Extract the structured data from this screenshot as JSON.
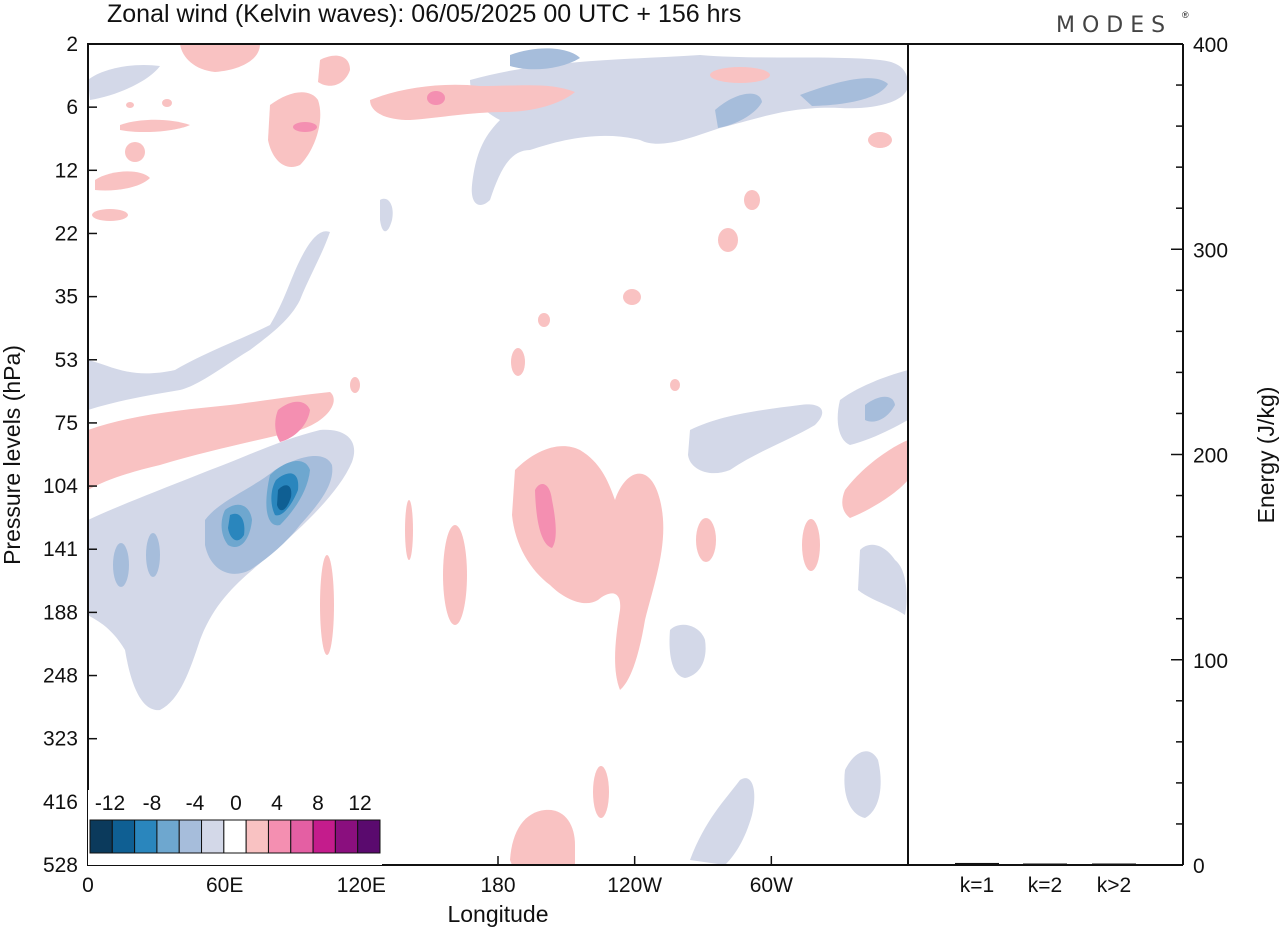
{
  "chart_data": {
    "type": "heatmap",
    "title": "Zonal wind (Kelvin waves):  06/05/2025  00 UTC  + 156 hrs",
    "logo": "MODES",
    "xlabel": "Longitude",
    "ylabel": "Pressure levels (hPa)",
    "x_ticks": [
      "0",
      "60E",
      "120E",
      "180",
      "120W",
      "60W"
    ],
    "x_tick_degrees": [
      0,
      60,
      120,
      180,
      240,
      300
    ],
    "xlim_degrees": [
      0,
      360
    ],
    "y_ticks": [
      "2",
      "6",
      "12",
      "22",
      "35",
      "53",
      "75",
      "104",
      "141",
      "188",
      "248",
      "323",
      "416",
      "528"
    ],
    "y_direction": "downward",
    "colorbar": {
      "labels": [
        "-12",
        "-8",
        "-4",
        "0",
        "4",
        "8",
        "12"
      ],
      "levels": [
        -12,
        -10,
        -8,
        -6,
        -4,
        -2,
        2,
        4,
        6,
        8,
        10,
        12
      ],
      "colors": [
        "#0b3a5c",
        "#0f5f93",
        "#2a86bd",
        "#6ea7cf",
        "#a6bddb",
        "#d3d8e8",
        "#ffffff",
        "#f9c2c2",
        "#f48fb1",
        "#e45fa3",
        "#c41c8c",
        "#8a0f7e",
        "#5a0a6e"
      ]
    },
    "energy_panel": {
      "ylabel": "Energy (J/kg)",
      "ylim": [
        0,
        400
      ],
      "y_ticks": [
        "0",
        "100",
        "200",
        "300",
        "400"
      ],
      "categories": [
        "k=1",
        "k=2",
        "k>2"
      ],
      "values": [
        1,
        0.3,
        0.2
      ]
    },
    "anomalies": [
      {
        "lon": 24,
        "p": 131,
        "value": -9
      },
      {
        "lon": 44,
        "p": 124,
        "value": -10
      },
      {
        "lon": 60,
        "p": 115,
        "value": -11
      },
      {
        "lon": 75,
        "p": 3,
        "value": -6
      },
      {
        "lon": 10,
        "p": 141,
        "value": -6
      },
      {
        "lon": 18,
        "p": 71,
        "value": 4
      },
      {
        "lon": 55,
        "p": 69,
        "value": 6
      },
      {
        "lon": 30,
        "p": 5.5,
        "value": 4
      },
      {
        "lon": 94,
        "p": 6,
        "value": 4
      },
      {
        "lon": 118,
        "p": 20,
        "value": -2
      },
      {
        "lon": 200,
        "p": 4,
        "value": -3
      },
      {
        "lon": 250,
        "p": 4,
        "value": -3
      },
      {
        "lon": 290,
        "p": 5,
        "value": -6
      },
      {
        "lon": 333,
        "p": 3.5,
        "value": -6
      },
      {
        "lon": 270,
        "p": 3.8,
        "value": 3
      },
      {
        "lon": 160,
        "p": 4.5,
        "value": 3
      },
      {
        "lon": 195,
        "p": 120,
        "value": 7
      },
      {
        "lon": 218,
        "p": 135,
        "value": 3
      },
      {
        "lon": 240,
        "p": 170,
        "value": 3
      },
      {
        "lon": 165,
        "p": 150,
        "value": 3
      },
      {
        "lon": 288,
        "p": 100,
        "value": -3
      },
      {
        "lon": 340,
        "p": 125,
        "value": -3
      },
      {
        "lon": 350,
        "p": 80,
        "value": -6
      },
      {
        "lon": 355,
        "p": 110,
        "value": 3
      },
      {
        "lon": 320,
        "p": 460,
        "value": -3
      },
      {
        "lon": 200,
        "p": 480,
        "value": 3
      },
      {
        "lon": 285,
        "p": 450,
        "value": -3
      },
      {
        "lon": 262,
        "p": 230,
        "value": -3
      }
    ]
  }
}
